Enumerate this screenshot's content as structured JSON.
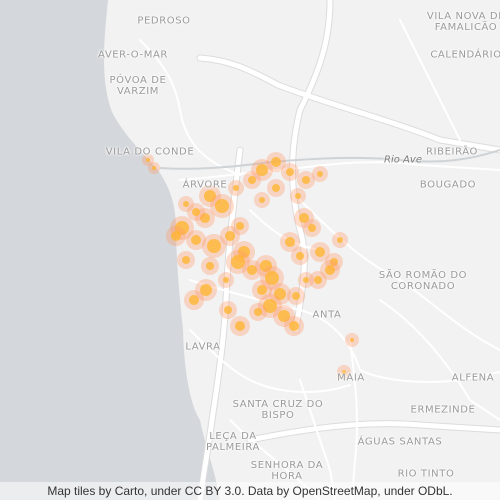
{
  "map": {
    "colors": {
      "sea": "#d4d7db",
      "land": "#f2f2f2",
      "road": "#ffffff",
      "roadCasing": "#dedede",
      "hotspot": "#ffb42a",
      "hotspotOuter": "#ff9a6a"
    }
  },
  "places": [
    {
      "id": "pedroso",
      "lines": [
        "PEDROSO"
      ]
    },
    {
      "id": "vila-nova-famalicao",
      "lines": [
        "VILA NOVA DE",
        "FAMALICÃO"
      ]
    },
    {
      "id": "aver-o-mar",
      "lines": [
        "AVER-O-MAR"
      ]
    },
    {
      "id": "calendario",
      "lines": [
        "CALENDÁRIO"
      ]
    },
    {
      "id": "povoa-de-varzim",
      "lines": [
        "PÓVOA DE",
        "VARZIM"
      ]
    },
    {
      "id": "vila-do-conde",
      "lines": [
        "VILA DO CONDE"
      ]
    },
    {
      "id": "ribeirao",
      "lines": [
        "RIBEIRÃO"
      ]
    },
    {
      "id": "arvore",
      "lines": [
        "ÁRVORE"
      ]
    },
    {
      "id": "bougado",
      "lines": [
        "BOUGADO"
      ]
    },
    {
      "id": "sao-romao-do-coronado",
      "lines": [
        "SÃO ROMÃO DO",
        "CORONADO"
      ]
    },
    {
      "id": "anta",
      "lines": [
        "ANTA"
      ]
    },
    {
      "id": "lavra",
      "lines": [
        "LAVRA"
      ]
    },
    {
      "id": "maia",
      "lines": [
        "MAIA"
      ]
    },
    {
      "id": "alfena",
      "lines": [
        "ALFENA"
      ]
    },
    {
      "id": "santa-cruz-do-bispo",
      "lines": [
        "SANTA CRUZ DO",
        "BISPO"
      ]
    },
    {
      "id": "ermezinde",
      "lines": [
        "ERMEZINDE"
      ]
    },
    {
      "id": "leca-da-palmeira",
      "lines": [
        "LEÇA DA",
        "PALMEIRA"
      ]
    },
    {
      "id": "aguas-santas",
      "lines": [
        "ÁGUAS SANTAS"
      ]
    },
    {
      "id": "senhora-da-hora",
      "lines": [
        "SENHORA DA",
        "HORA"
      ]
    },
    {
      "id": "rio-tinto",
      "lines": [
        "RIO TINTO"
      ]
    }
  ],
  "river_label": "Rio Ave",
  "attribution": "Map tiles by Carto, under CC BY 3.0. Data by OpenStreetMap, under ODbL."
}
